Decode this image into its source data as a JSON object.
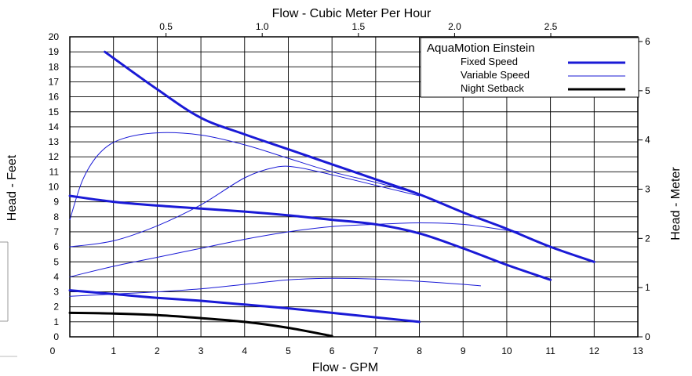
{
  "chart_data": {
    "type": "line",
    "title": "Flow - Cubic Meter Per Hour",
    "xlabel": "Flow - GPM",
    "ylabel": "Head - Feet",
    "y2label": "Head - Meter",
    "xlim": [
      0,
      13
    ],
    "ylim": [
      0,
      20
    ],
    "x_ticks": [
      "0",
      "1",
      "2",
      "3",
      "4",
      "5",
      "6",
      "7",
      "8",
      "9",
      "10",
      "11",
      "12",
      "13"
    ],
    "y_ticks": [
      "0",
      "1",
      "2",
      "3",
      "4",
      "5",
      "6",
      "7",
      "8",
      "9",
      "10",
      "11",
      "12",
      "13",
      "14",
      "15",
      "16",
      "17",
      "18",
      "19",
      "20"
    ],
    "x2_ticks": [
      {
        "label": "0.5",
        "value": 0.5
      },
      {
        "label": "1.0",
        "value": 1.0
      },
      {
        "label": "1.5",
        "value": 1.5
      },
      {
        "label": "2.0",
        "value": 2.0
      },
      {
        "label": "2.5",
        "value": 2.5
      }
    ],
    "y2_ticks": [
      {
        "label": "0",
        "value": 0
      },
      {
        "label": "1",
        "value": 1
      },
      {
        "label": "2",
        "value": 2
      },
      {
        "label": "3",
        "value": 3
      },
      {
        "label": "4",
        "value": 4
      },
      {
        "label": "5",
        "value": 5
      },
      {
        "label": "6",
        "value": 6
      }
    ],
    "grid": true,
    "legend": {
      "title": "AquaMotion Einstein",
      "placement": "top-right",
      "entries": [
        {
          "label": "Fixed Speed",
          "color": "#1a1ad6",
          "style": "thick"
        },
        {
          "label": "Variable Speed",
          "color": "#1a1ad6",
          "style": "thin"
        },
        {
          "label": "Night Setback",
          "color": "#000000",
          "style": "thick"
        }
      ]
    },
    "series": [
      {
        "group": "fixed",
        "color": "#1a1ad6",
        "width": 3,
        "points": [
          [
            0.8,
            19
          ],
          [
            2,
            16.5
          ],
          [
            3,
            14.6
          ],
          [
            4,
            13.5
          ],
          [
            5,
            12.5
          ],
          [
            6,
            11.5
          ],
          [
            7,
            10.5
          ],
          [
            8,
            9.5
          ],
          [
            9,
            8.3
          ],
          [
            10,
            7.2
          ],
          [
            11,
            6.0
          ],
          [
            12,
            5.0
          ]
        ]
      },
      {
        "group": "fixed",
        "color": "#1a1ad6",
        "width": 3,
        "points": [
          [
            0,
            9.4
          ],
          [
            1,
            9.0
          ],
          [
            2,
            8.75
          ],
          [
            3,
            8.55
          ],
          [
            4,
            8.35
          ],
          [
            5,
            8.1
          ],
          [
            6,
            7.8
          ],
          [
            7,
            7.5
          ],
          [
            8,
            6.9
          ],
          [
            9,
            5.9
          ],
          [
            10,
            4.8
          ],
          [
            11,
            3.8
          ]
        ]
      },
      {
        "group": "fixed",
        "color": "#1a1ad6",
        "width": 3,
        "points": [
          [
            0,
            3.1
          ],
          [
            1,
            2.85
          ],
          [
            2,
            2.6
          ],
          [
            3,
            2.4
          ],
          [
            4,
            2.15
          ],
          [
            5,
            1.9
          ],
          [
            6,
            1.6
          ],
          [
            7,
            1.3
          ],
          [
            8,
            1.0
          ]
        ]
      },
      {
        "group": "variable",
        "color": "#1a1ad6",
        "width": 1,
        "points": [
          [
            0,
            7.8
          ],
          [
            0.3,
            10.5
          ],
          [
            0.7,
            12.3
          ],
          [
            1.2,
            13.2
          ],
          [
            2,
            13.6
          ],
          [
            3,
            13.45
          ],
          [
            4,
            12.8
          ],
          [
            5,
            11.9
          ],
          [
            6,
            11.0
          ],
          [
            7,
            10.3
          ],
          [
            8,
            9.5
          ]
        ]
      },
      {
        "group": "variable",
        "color": "#1a1ad6",
        "width": 1,
        "points": [
          [
            0,
            6.0
          ],
          [
            1,
            6.4
          ],
          [
            2,
            7.4
          ],
          [
            3,
            8.8
          ],
          [
            4,
            10.6
          ],
          [
            4.7,
            11.3
          ],
          [
            5.2,
            11.3
          ],
          [
            6,
            10.8
          ],
          [
            7,
            10.1
          ],
          [
            8,
            9.4
          ]
        ]
      },
      {
        "group": "variable",
        "color": "#1a1ad6",
        "width": 1,
        "points": [
          [
            0,
            4.0
          ],
          [
            1,
            4.7
          ],
          [
            2,
            5.3
          ],
          [
            3,
            5.9
          ],
          [
            4,
            6.5
          ],
          [
            5,
            7.0
          ],
          [
            6,
            7.35
          ],
          [
            7,
            7.5
          ],
          [
            8,
            7.6
          ],
          [
            9,
            7.5
          ],
          [
            10,
            7.1
          ],
          [
            10.3,
            7.0
          ]
        ]
      },
      {
        "group": "variable",
        "color": "#1a1ad6",
        "width": 1,
        "points": [
          [
            0,
            2.7
          ],
          [
            1,
            2.85
          ],
          [
            2,
            3.0
          ],
          [
            3,
            3.2
          ],
          [
            4,
            3.5
          ],
          [
            5,
            3.8
          ],
          [
            6,
            3.9
          ],
          [
            7,
            3.85
          ],
          [
            8,
            3.7
          ],
          [
            9,
            3.5
          ],
          [
            9.4,
            3.4
          ]
        ]
      },
      {
        "group": "night",
        "color": "#000000",
        "width": 3,
        "points": [
          [
            0,
            1.6
          ],
          [
            1,
            1.55
          ],
          [
            2,
            1.45
          ],
          [
            3,
            1.25
          ],
          [
            4,
            1.0
          ],
          [
            5,
            0.6
          ],
          [
            6,
            0.05
          ]
        ]
      }
    ]
  }
}
